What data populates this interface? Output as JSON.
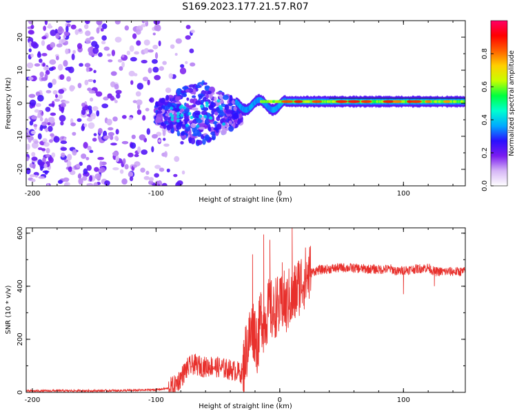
{
  "figure_title": "S169.2023.177.21.57.R07",
  "colors": {
    "axis": "#000000",
    "snr_line": "#e8302c",
    "background": "#ffffff"
  },
  "chart_data": [
    {
      "type": "heatmap",
      "title": "",
      "xlabel": "Height of straight line (km)",
      "ylabel": "Frequency (Hz)",
      "xlim": [
        -205,
        150
      ],
      "ylim": [
        -25,
        25
      ],
      "xticks": [
        -200,
        -100,
        0,
        100
      ],
      "yticks": [
        -20,
        -10,
        0,
        10,
        20
      ],
      "colorbar": {
        "label": "Normalized spectral amplitude",
        "range": [
          0.0,
          1.0
        ],
        "ticks": [
          0.0,
          0.2,
          0.4,
          0.6,
          0.8
        ],
        "tick_labels": [
          "0.0",
          "0.2",
          "0.4",
          "0.6",
          "0.8"
        ],
        "colormap": [
          "#ffffff",
          "#d6b6f6",
          "#7a1cf0",
          "#2a10ff",
          "#00aaff",
          "#00ffd0",
          "#00ff40",
          "#c8ff00",
          "#ffd000",
          "#ff6000",
          "#ff0000",
          "#ff0066"
        ]
      },
      "regions": [
        {
          "name": "diffuse noise",
          "x_range": [
            -205,
            -90
          ],
          "freq_range": [
            -25,
            25
          ],
          "amplitude": 0.15
        },
        {
          "name": "noise patch",
          "x_range": [
            -100,
            -30
          ],
          "freq_range": [
            -10,
            8
          ],
          "amplitude": 0.35
        },
        {
          "name": "signal line",
          "x_range": [
            -35,
            150
          ],
          "freq_center": 0.5,
          "freq_halfwidth": 1.5,
          "amplitude": 0.75
        }
      ]
    },
    {
      "type": "line",
      "title": "",
      "xlabel": "Height of straight line (km)",
      "ylabel": "SNR (10 * v/v)",
      "xlim": [
        -205,
        150
      ],
      "ylim": [
        0,
        620
      ],
      "xticks": [
        -200,
        -100,
        0,
        100
      ],
      "yticks": [
        0,
        200,
        400,
        600
      ],
      "series": [
        {
          "name": "SNR",
          "x": [
            -205,
            -180,
            -150,
            -120,
            -100,
            -90,
            -85,
            -80,
            -75,
            -70,
            -65,
            -60,
            -55,
            -50,
            -45,
            -40,
            -35,
            -30,
            -28,
            -25,
            -22,
            -20,
            -18,
            -15,
            -13,
            -10,
            -8,
            -5,
            -3,
            0,
            3,
            5,
            8,
            10,
            12,
            15,
            18,
            20,
            25,
            30,
            40,
            50,
            60,
            70,
            80,
            90,
            95,
            100,
            110,
            120,
            125,
            130,
            140,
            150
          ],
          "values": [
            5,
            6,
            6,
            7,
            10,
            15,
            25,
            55,
            90,
            105,
            100,
            95,
            100,
            95,
            90,
            85,
            80,
            70,
            140,
            200,
            240,
            230,
            180,
            300,
            260,
            300,
            320,
            290,
            330,
            310,
            350,
            320,
            360,
            340,
            370,
            400,
            420,
            430,
            450,
            460,
            465,
            470,
            468,
            465,
            463,
            465,
            455,
            460,
            465,
            470,
            455,
            455,
            455,
            455
          ]
        }
      ],
      "spikes": [
        {
          "x": -22,
          "value": 520
        },
        {
          "x": -13,
          "value": 595
        },
        {
          "x": -8,
          "value": 575
        },
        {
          "x": 2,
          "value": 490
        },
        {
          "x": 10,
          "value": 620
        },
        {
          "x": 100,
          "value": 370
        },
        {
          "x": 125,
          "value": 400
        }
      ]
    }
  ]
}
